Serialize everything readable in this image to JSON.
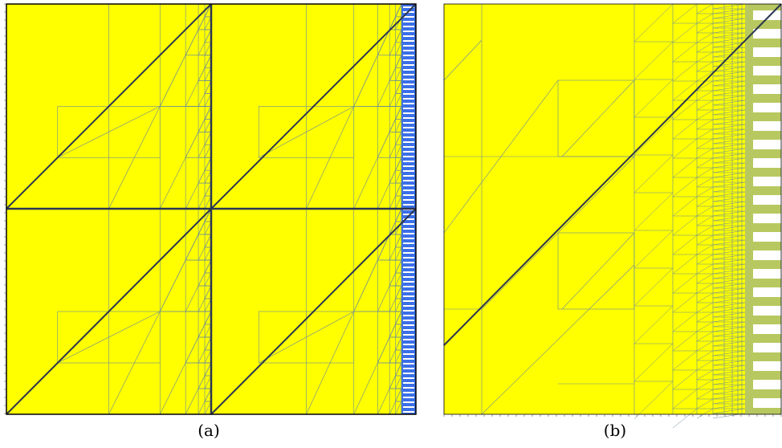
{
  "panels": [
    {
      "id": "a",
      "caption": "(a)"
    },
    {
      "id": "b",
      "caption": "(b)"
    }
  ],
  "colors": {
    "fill": "#ffff00",
    "thin_line": "#6a8a9a",
    "thick_line": "#2a3550",
    "stripe_blue": "#3a6fe8",
    "frame": "#000000"
  }
}
